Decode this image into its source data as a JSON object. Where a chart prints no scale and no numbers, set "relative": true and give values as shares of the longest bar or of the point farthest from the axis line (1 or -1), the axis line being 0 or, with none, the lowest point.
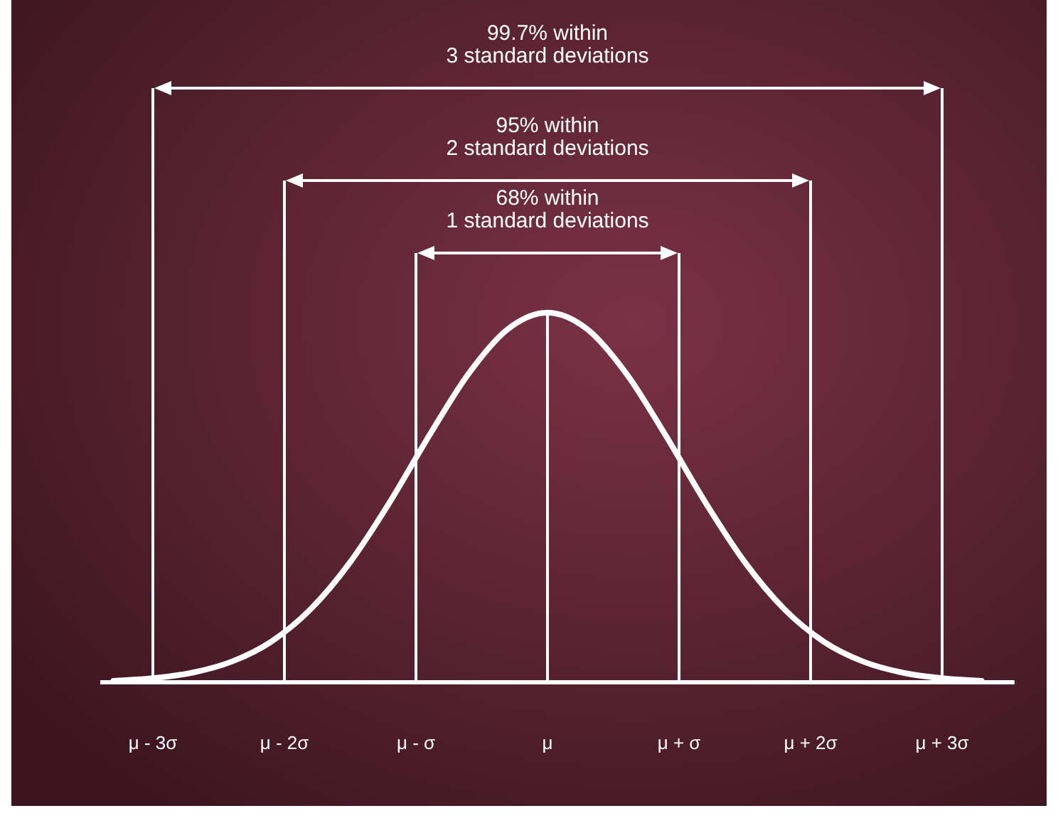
{
  "chart_data": {
    "type": "line",
    "relative": true,
    "color": "#ffffff",
    "line_style": "solid",
    "marker": "none",
    "tick_labels": "x",
    "x": [
      -3.3,
      -3,
      -2.7,
      -2.4,
      -2.1,
      -1.8,
      -1.5,
      -1.2,
      -0.9,
      -0.6,
      -0.3,
      0,
      0.3,
      0.6,
      0.9,
      1.2,
      1.5,
      1.8,
      2.1,
      2.4,
      2.7,
      3,
      3.3
    ],
    "values": [
      0.004,
      0.011,
      0.026,
      0.056,
      0.11,
      0.198,
      0.325,
      0.487,
      0.667,
      0.835,
      0.956,
      1,
      0.956,
      0.835,
      0.667,
      0.487,
      0.325,
      0.198,
      0.11,
      0.056,
      0.026,
      0.011,
      0.004
    ],
    "xlim": [
      -3.4,
      3.55
    ],
    "xticks": [
      {
        "value": -3,
        "label": "μ - 3σ"
      },
      {
        "value": -2,
        "label": "μ - 2σ"
      },
      {
        "value": -1,
        "label": "μ - σ"
      },
      {
        "value": 0,
        "label": "μ"
      },
      {
        "value": 1,
        "label": "μ + σ"
      },
      {
        "value": 2,
        "label": "μ + 2σ"
      },
      {
        "value": 3,
        "label": "μ + 3σ"
      }
    ],
    "ref_lines": [
      {
        "axis": "x",
        "value": -3,
        "color": "#ffffff"
      },
      {
        "axis": "x",
        "value": 3,
        "color": "#ffffff"
      },
      {
        "axis": "x",
        "value": -2,
        "color": "#ffffff"
      },
      {
        "axis": "x",
        "value": 2,
        "color": "#ffffff"
      },
      {
        "axis": "x",
        "value": -1,
        "color": "#ffffff"
      },
      {
        "axis": "x",
        "value": 1,
        "color": "#ffffff"
      },
      {
        "axis": "x",
        "value": 0,
        "color": "#ffffff"
      }
    ],
    "annotations": [
      "99.7% within\n3 standard deviations",
      "95% within\n2 standard deviations",
      "68% within\n1 standard deviations"
    ]
  }
}
